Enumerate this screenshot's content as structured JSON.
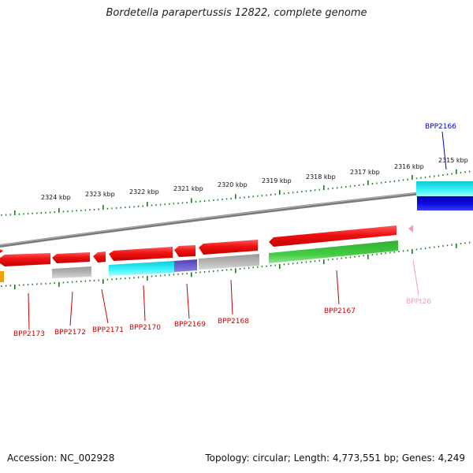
{
  "title": "Bordetella parapertussis 12822, complete genome",
  "footer": {
    "accession": "Accession: NC_002928",
    "summary": "Topology: circular; Length: 4,773,551 bp; Genes: 4,249"
  },
  "scale_labels": [
    "2324 kbp",
    "2323 kbp",
    "2322 kbp",
    "2321 kbp",
    "2320 kbp",
    "2319 kbp",
    "2318 kbp",
    "2317 kbp",
    "2316 kbp",
    "2315 kbp"
  ],
  "gene_labels": [
    {
      "name": "BPP2173",
      "color": "#cc0000"
    },
    {
      "name": "BPP2172",
      "color": "#cc0000"
    },
    {
      "name": "BPP2171",
      "color": "#cc0000"
    },
    {
      "name": "BPP2170",
      "color": "#cc0000"
    },
    {
      "name": "BPP2169",
      "color": "#cc0000"
    },
    {
      "name": "BPP2168",
      "color": "#cc0000"
    },
    {
      "name": "BPP2167",
      "color": "#cc0000"
    },
    {
      "name": "BPPt26",
      "color": "#f29bc8"
    },
    {
      "name": "BPP2166",
      "color": "#0000cc"
    }
  ],
  "colors": {
    "tick": "#1a7a1a",
    "backbone": "#888888",
    "cds_reverse": "#e81010",
    "cds_forward": "#3cc43c",
    "trna": "#f29bc8",
    "cyan_feature": "#22e8f0",
    "blue_feature": "#0a0ad8",
    "purple_feature": "#6a5ad0",
    "gray_feature": "#aaaaaa",
    "orange_feature": "#f0a000"
  }
}
